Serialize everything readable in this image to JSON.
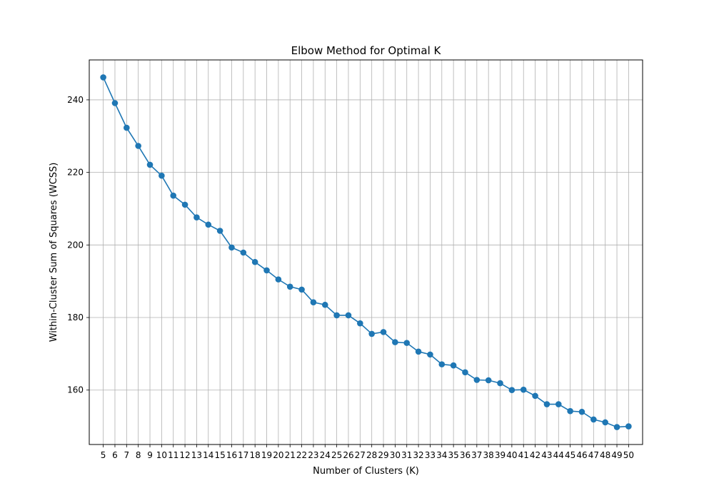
{
  "chart_data": {
    "type": "line",
    "title": "Elbow Method for Optimal K",
    "xlabel": "Number of Clusters (K)",
    "ylabel": "Within-Cluster Sum of Squares (WCSS)",
    "xlim": [
      3.8,
      51.2
    ],
    "ylim": [
      145,
      251
    ],
    "yticks": [
      160,
      180,
      200,
      220,
      240
    ],
    "grid": true,
    "marker": "circle",
    "color": "#1f77b4",
    "x": [
      5,
      6,
      7,
      8,
      9,
      10,
      11,
      12,
      13,
      14,
      15,
      16,
      17,
      18,
      19,
      20,
      21,
      22,
      23,
      24,
      25,
      26,
      27,
      28,
      29,
      30,
      31,
      32,
      33,
      34,
      35,
      36,
      37,
      38,
      39,
      40,
      41,
      42,
      43,
      44,
      45,
      46,
      47,
      48,
      49,
      50
    ],
    "series": [
      {
        "values": [
          246.2,
          239.1,
          232.3,
          227.3,
          222.1,
          219.1,
          213.6,
          211.1,
          207.6,
          205.6,
          203.9,
          199.3,
          197.9,
          195.3,
          193.0,
          190.5,
          188.5,
          187.7,
          184.2,
          183.5,
          180.6,
          180.6,
          178.4,
          175.5,
          176.0,
          173.2,
          173.0,
          170.6,
          169.8,
          167.1,
          166.8,
          164.9,
          162.8,
          162.7,
          161.9,
          160.0,
          160.1,
          158.4,
          156.1,
          156.1,
          154.2,
          154.0,
          151.9,
          151.1,
          149.8,
          150.0
        ]
      }
    ]
  }
}
